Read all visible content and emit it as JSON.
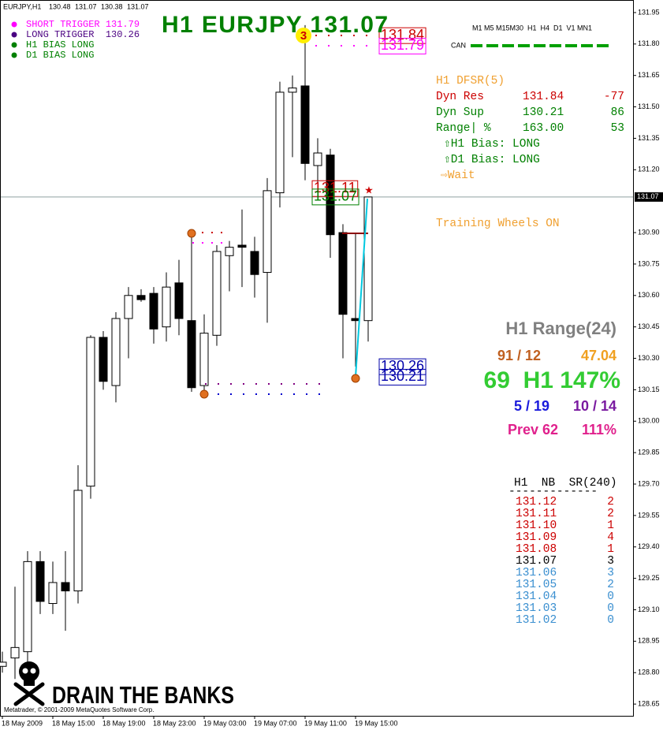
{
  "header": {
    "symbol": "EURJPY,H1",
    "ohlc": [
      130.48,
      131.07,
      130.38,
      131.07
    ]
  },
  "title": "H1 EURJPY 131.07",
  "legend": [
    {
      "text": "SHORT TRIGGER 131.79",
      "color": "#ff00ff"
    },
    {
      "text": "LONG TRIGGER  130.26",
      "color": "#4b0082"
    },
    {
      "text": "H1 BIAS LONG",
      "color": "#008000"
    },
    {
      "text": "D1 BIAS LONG",
      "color": "#008000"
    }
  ],
  "timeframes": "M1 M5 M15M30  H1  H4  D1  V1 MN1",
  "can_label": "CAN",
  "dfsr": {
    "title": "H1 DFSR(5)",
    "rows": [
      {
        "label": "Dyn Res",
        "price": "131.84",
        "pips": "-77",
        "color": "#cc0000"
      },
      {
        "label": "Dyn Sup",
        "price": "130.21",
        "pips": "86",
        "color": "#008000"
      },
      {
        "label": "Range| %",
        "price": "163.00",
        "pips": "53",
        "color": "#008000"
      }
    ],
    "bias": [
      "⇧H1 Bias: LONG",
      "⇧D1 Bias: LONG"
    ],
    "signal": "⇨Wait"
  },
  "training_wheels": "Training Wheels ON",
  "range_panel": {
    "title": "H1 Range(24)",
    "row1": [
      "91 / 12",
      "47.04"
    ],
    "main": "69  H1 147%",
    "row3": [
      "5 / 19",
      "10 / 14"
    ],
    "prev": [
      "Prev 62",
      "111%"
    ]
  },
  "sr_table": {
    "title": "H1  NB  SR(240)",
    "rule": "-------------",
    "rows": [
      {
        "price": "131.12",
        "count": "2",
        "color": "#cc0000"
      },
      {
        "price": "131.11",
        "count": "2",
        "color": "#cc0000"
      },
      {
        "price": "131.10",
        "count": "1",
        "color": "#cc0000"
      },
      {
        "price": "131.09",
        "count": "4",
        "color": "#cc0000"
      },
      {
        "price": "131.08",
        "count": "1",
        "color": "#cc0000"
      },
      {
        "price": "131.07",
        "count": "3",
        "color": "#000000"
      },
      {
        "price": "131.06",
        "count": "3",
        "color": "#3a8fd0"
      },
      {
        "price": "131.05",
        "count": "2",
        "color": "#3a8fd0"
      },
      {
        "price": "131.04",
        "count": "0",
        "color": "#3a8fd0"
      },
      {
        "price": "131.03",
        "count": "0",
        "color": "#3a8fd0"
      },
      {
        "price": "131.02",
        "count": "0",
        "color": "#3a8fd0"
      }
    ]
  },
  "branding": "DRAIN THE BANKS",
  "copyright": "Metatrader, © 2001-2009 MetaQuotes Software Corp.",
  "chart_data": {
    "type": "candlestick",
    "categories": [
      "18 May 2009",
      null,
      null,
      null,
      "18 May 15:00",
      null,
      null,
      null,
      "18 May 19:00",
      null,
      null,
      null,
      "18 May 23:00",
      null,
      null,
      null,
      "19 May 03:00",
      null,
      null,
      null,
      "19 May 07:00",
      null,
      null,
      null,
      "19 May 11:00",
      null,
      null,
      null,
      "19 May 15:00",
      null
    ],
    "open": [
      128.83,
      128.87,
      128.9,
      129.33,
      129.13,
      129.23,
      129.19,
      129.69,
      130.4,
      130.17,
      130.49,
      130.6,
      130.61,
      130.45,
      130.66,
      130.48,
      130.17,
      130.41,
      130.79,
      130.84,
      130.81,
      130.71,
      131.09,
      131.57,
      131.6,
      131.22,
      131.27,
      130.9,
      130.49,
      130.48
    ],
    "high": [
      128.9,
      129.21,
      129.38,
      129.38,
      129.33,
      129.38,
      129.79,
      130.41,
      130.43,
      130.52,
      130.64,
      130.63,
      130.64,
      130.71,
      130.77,
      130.88,
      130.51,
      130.84,
      130.86,
      131.01,
      130.88,
      131.16,
      131.62,
      131.65,
      131.89,
      131.35,
      131.3,
      130.94,
      130.9,
      131.07
    ],
    "low": [
      128.8,
      128.77,
      128.85,
      129.08,
      129.08,
      129.0,
      129.13,
      129.63,
      130.15,
      130.09,
      130.3,
      130.57,
      130.37,
      130.38,
      130.41,
      130.14,
      130.13,
      130.36,
      130.62,
      130.64,
      130.59,
      130.47,
      131.02,
      131.26,
      131.15,
      131.06,
      130.78,
      130.3,
      130.26,
      130.38
    ],
    "close": [
      128.85,
      128.92,
      129.33,
      129.14,
      129.23,
      129.19,
      129.67,
      130.4,
      130.19,
      130.49,
      130.6,
      130.58,
      130.44,
      130.64,
      130.49,
      130.16,
      130.42,
      130.81,
      130.83,
      130.83,
      130.7,
      131.1,
      131.57,
      131.59,
      131.23,
      131.28,
      130.89,
      130.51,
      130.48,
      131.07
    ],
    "ylim": [
      128.594,
      132.01
    ],
    "yticks": [
      131.95,
      {
        "value": 131.8,
        "label": "131.80"
      },
      131.65,
      {
        "value": 131.5,
        "label": "131.50"
      },
      131.35,
      {
        "value": 131.2,
        "label": "131.20"
      },
      {
        "value": 130.9,
        "label": "130.90"
      },
      130.75,
      {
        "value": 130.6,
        "label": "130.60"
      },
      130.45,
      {
        "value": 130.3,
        "label": "130.30"
      },
      130.15,
      {
        "value": 130,
        "label": "130.00"
      },
      129.85,
      {
        "value": 129.7,
        "label": "129.70"
      },
      129.55,
      {
        "value": 129.4,
        "label": "129.40"
      },
      129.25,
      {
        "value": 129.1,
        "label": "129.10"
      },
      128.95,
      {
        "value": 128.8,
        "label": "128.80"
      },
      128.65
    ],
    "current_price": 131.07,
    "levels": [
      {
        "value": 131.84,
        "color": "#cc0000"
      },
      {
        "value": 131.79,
        "color": "#ff00ff"
      },
      {
        "value": 131.11,
        "color": "#cc0000"
      },
      {
        "value": 131.07,
        "color": "#008000"
      },
      {
        "value": 130.26,
        "color": "#0000aa"
      },
      {
        "value": 130.21,
        "color": "#0000aa"
      }
    ],
    "bull_color": "#ffffff",
    "bear_color": "#000000"
  }
}
